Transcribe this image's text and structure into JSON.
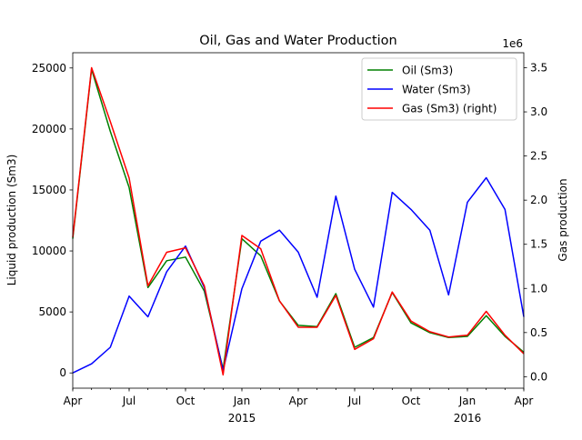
{
  "chart_data": {
    "type": "line",
    "title": "Oil, Gas and Water Production",
    "ylabel": "Liquid production (Sm3)",
    "y2label": "Gas production",
    "y2_multiplier_label": "1e6",
    "x": [
      "2014-04",
      "2014-05",
      "2014-06",
      "2014-07",
      "2014-08",
      "2014-09",
      "2014-10",
      "2014-11",
      "2014-12",
      "2015-01",
      "2015-02",
      "2015-03",
      "2015-04",
      "2015-05",
      "2015-06",
      "2015-07",
      "2015-08",
      "2015-09",
      "2015-10",
      "2015-11",
      "2015-12",
      "2016-01",
      "2016-02",
      "2016-03",
      "2016-04"
    ],
    "xlim": [
      "2014-04",
      "2016-04"
    ],
    "x_ticks": [
      {
        "x": "2014-04",
        "label": "Apr",
        "sub": ""
      },
      {
        "x": "2014-07",
        "label": "Jul",
        "sub": ""
      },
      {
        "x": "2014-10",
        "label": "Oct",
        "sub": ""
      },
      {
        "x": "2015-01",
        "label": "Jan",
        "sub": "2015"
      },
      {
        "x": "2015-04",
        "label": "Apr",
        "sub": ""
      },
      {
        "x": "2015-07",
        "label": "Jul",
        "sub": ""
      },
      {
        "x": "2015-10",
        "label": "Oct",
        "sub": ""
      },
      {
        "x": "2016-01",
        "label": "Jan",
        "sub": "2016"
      },
      {
        "x": "2016-04",
        "label": "Apr",
        "sub": ""
      }
    ],
    "ylim": [
      -1250,
      26250
    ],
    "y_ticks": [
      0,
      5000,
      10000,
      15000,
      20000,
      25000
    ],
    "y2lim": [
      -0.13,
      3.67
    ],
    "y2_ticks": [
      0.0,
      0.5,
      1.0,
      1.5,
      2.0,
      2.5,
      3.0,
      3.5
    ],
    "legend_position": "top-right",
    "series": [
      {
        "name": "Oil (Sm3)",
        "axis": "left",
        "color": "#008000",
        "values": [
          11000,
          24900,
          19800,
          15200,
          7000,
          9200,
          9500,
          6700,
          300,
          11000,
          9600,
          5900,
          3900,
          3800,
          6500,
          2100,
          2900,
          6600,
          4100,
          3300,
          2900,
          3000,
          4700,
          3000,
          1700
        ]
      },
      {
        "name": "Water (Sm3)",
        "axis": "left",
        "color": "#0000ff",
        "values": [
          0,
          750,
          2100,
          6300,
          4600,
          8300,
          10400,
          7000,
          200,
          6900,
          10800,
          11700,
          9900,
          6200,
          14500,
          8500,
          5400,
          14800,
          13400,
          11700,
          6400,
          14000,
          16000,
          13400,
          4600
        ]
      },
      {
        "name": "Gas (Sm3) (right)",
        "axis": "right",
        "color": "#ff0000",
        "unit_scale": 1000000,
        "values": [
          1.58,
          3.5,
          2.89,
          2.25,
          1.03,
          1.41,
          1.46,
          1.03,
          0.02,
          1.6,
          1.45,
          0.86,
          0.56,
          0.56,
          0.92,
          0.31,
          0.43,
          0.96,
          0.63,
          0.51,
          0.45,
          0.47,
          0.74,
          0.47,
          0.26
        ]
      }
    ]
  }
}
